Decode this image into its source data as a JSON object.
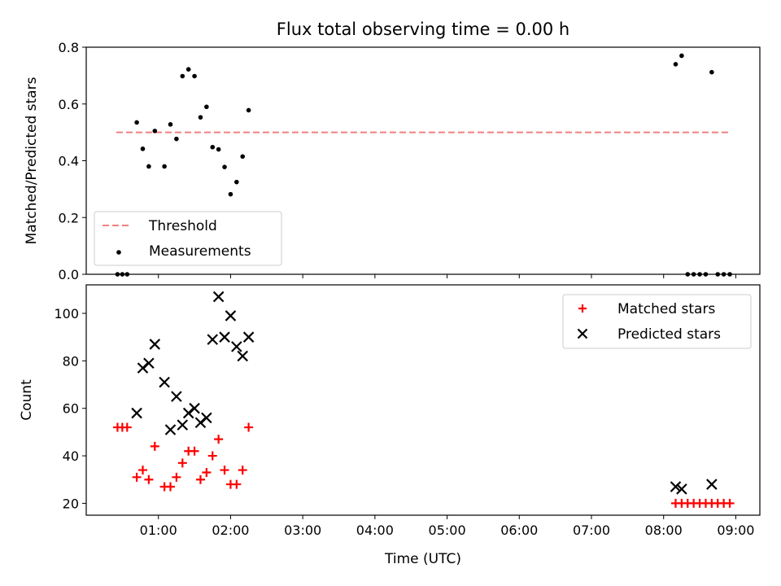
{
  "figure": {
    "title": "Flux total observing time = 0.00 h"
  },
  "chart_data": [
    {
      "type": "scatter",
      "ylabel": "Matched/Predicted stars",
      "xlabel": "",
      "xlim": [
        "00:00",
        "09:20"
      ],
      "ylim": [
        0,
        0.8
      ],
      "x_ticks": [
        "01:00",
        "02:00",
        "03:00",
        "04:00",
        "05:00",
        "06:00",
        "07:00",
        "08:00",
        "09:00"
      ],
      "y_ticks": [
        "0.0",
        "0.2",
        "0.4",
        "0.6",
        "0.8"
      ],
      "legend": {
        "position": "lower-left",
        "entries": [
          "Threshold",
          "Measurements"
        ]
      },
      "threshold": {
        "name": "Threshold",
        "value": 0.5,
        "x_range": [
          "00:25",
          "08:55"
        ],
        "color": "#f08080",
        "style": "dashed"
      },
      "series": [
        {
          "name": "Measurements",
          "marker": "dot",
          "color": "#000000",
          "points": [
            [
              "00:26",
              0.0
            ],
            [
              "00:30",
              0.0
            ],
            [
              "00:34",
              0.0
            ],
            [
              "00:42",
              0.535
            ],
            [
              "00:47",
              0.442
            ],
            [
              "00:52",
              0.38
            ],
            [
              "00:57",
              0.505
            ],
            [
              "01:05",
              0.38
            ],
            [
              "01:10",
              0.528
            ],
            [
              "01:15",
              0.477
            ],
            [
              "01:20",
              0.698
            ],
            [
              "01:25",
              0.722
            ],
            [
              "01:30",
              0.698
            ],
            [
              "01:35",
              0.553
            ],
            [
              "01:40",
              0.59
            ],
            [
              "01:45",
              0.448
            ],
            [
              "01:50",
              0.44
            ],
            [
              "01:55",
              0.378
            ],
            [
              "02:00",
              0.282
            ],
            [
              "02:05",
              0.325
            ],
            [
              "02:10",
              0.415
            ],
            [
              "02:15",
              0.578
            ],
            [
              "08:10",
              0.74
            ],
            [
              "08:15",
              0.77
            ],
            [
              "08:20",
              0.0
            ],
            [
              "08:25",
              0.0
            ],
            [
              "08:30",
              0.0
            ],
            [
              "08:35",
              0.0
            ],
            [
              "08:40",
              0.712
            ],
            [
              "08:45",
              0.0
            ],
            [
              "08:50",
              0.0
            ],
            [
              "08:55",
              0.0
            ]
          ]
        }
      ]
    },
    {
      "type": "scatter",
      "ylabel": "Count",
      "xlabel": "Time (UTC)",
      "xlim": [
        "00:00",
        "09:20"
      ],
      "ylim": [
        15,
        112
      ],
      "x_ticks": [
        "01:00",
        "02:00",
        "03:00",
        "04:00",
        "05:00",
        "06:00",
        "07:00",
        "08:00",
        "09:00"
      ],
      "y_ticks": [
        "20",
        "40",
        "60",
        "80",
        "100"
      ],
      "legend": {
        "position": "upper-right",
        "entries": [
          "Matched stars",
          "Predicted stars"
        ]
      },
      "series": [
        {
          "name": "Matched stars",
          "marker": "plus",
          "color": "#ff0000",
          "points": [
            [
              "00:26",
              52
            ],
            [
              "00:30",
              52
            ],
            [
              "00:34",
              52
            ],
            [
              "00:42",
              31
            ],
            [
              "00:47",
              34
            ],
            [
              "00:52",
              30
            ],
            [
              "00:57",
              44
            ],
            [
              "01:05",
              27
            ],
            [
              "01:10",
              27
            ],
            [
              "01:15",
              31
            ],
            [
              "01:20",
              37
            ],
            [
              "01:25",
              42
            ],
            [
              "01:30",
              42
            ],
            [
              "01:35",
              30
            ],
            [
              "01:40",
              33
            ],
            [
              "01:45",
              40
            ],
            [
              "01:50",
              47
            ],
            [
              "01:55",
              34
            ],
            [
              "02:00",
              28
            ],
            [
              "02:05",
              28
            ],
            [
              "02:10",
              34
            ],
            [
              "02:15",
              52
            ],
            [
              "08:10",
              20
            ],
            [
              "08:15",
              20
            ],
            [
              "08:20",
              20
            ],
            [
              "08:25",
              20
            ],
            [
              "08:30",
              20
            ],
            [
              "08:35",
              20
            ],
            [
              "08:40",
              20
            ],
            [
              "08:45",
              20
            ],
            [
              "08:50",
              20
            ],
            [
              "08:55",
              20
            ]
          ]
        },
        {
          "name": "Predicted stars",
          "marker": "x",
          "color": "#000000",
          "points": [
            [
              "00:42",
              58
            ],
            [
              "00:47",
              77
            ],
            [
              "00:52",
              79
            ],
            [
              "00:57",
              87
            ],
            [
              "01:05",
              71
            ],
            [
              "01:10",
              51
            ],
            [
              "01:15",
              65
            ],
            [
              "01:20",
              53
            ],
            [
              "01:25",
              58
            ],
            [
              "01:30",
              60
            ],
            [
              "01:35",
              54
            ],
            [
              "01:40",
              56
            ],
            [
              "01:45",
              89
            ],
            [
              "01:50",
              107
            ],
            [
              "01:55",
              90
            ],
            [
              "02:00",
              99
            ],
            [
              "02:05",
              86
            ],
            [
              "02:10",
              82
            ],
            [
              "02:15",
              90
            ],
            [
              "08:10",
              27
            ],
            [
              "08:15",
              26
            ],
            [
              "08:40",
              28
            ]
          ]
        }
      ]
    }
  ]
}
